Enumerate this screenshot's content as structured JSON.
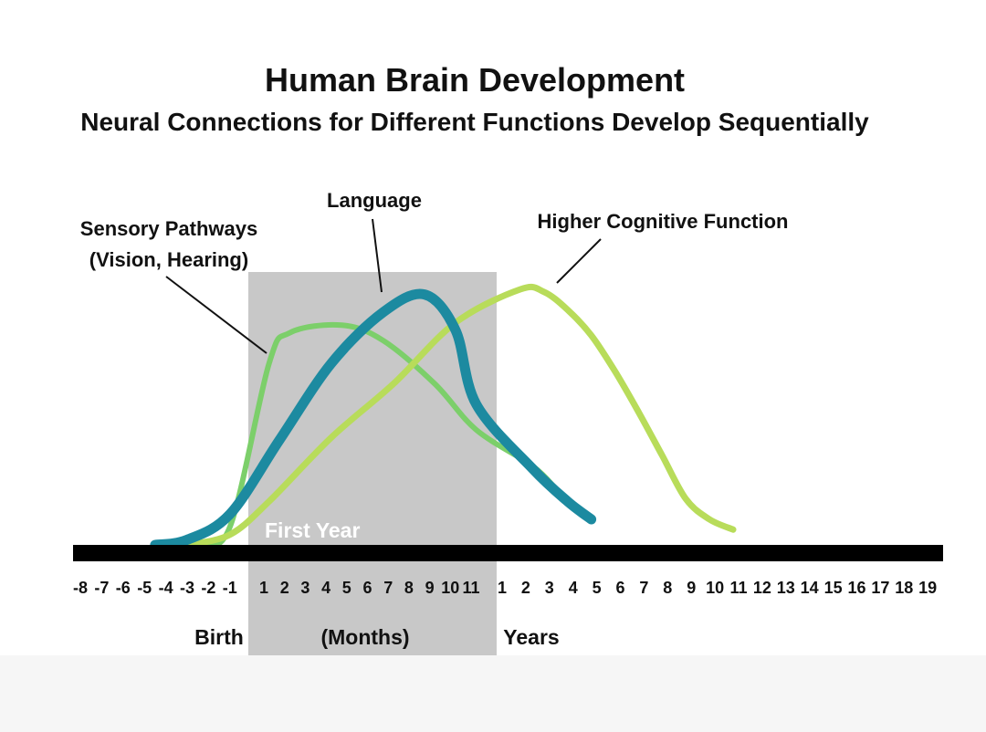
{
  "colors": {
    "sensory": "#7ccf6a",
    "language": "#1c8aa0",
    "cognitive": "#b8dc5a",
    "first_year_band": "#c8c8c8",
    "axis": "#000000",
    "text": "#111111"
  },
  "chart_data": {
    "type": "line",
    "title": "Human Brain Development",
    "subtitle": "Neural Connections for Different Functions Develop Sequentially",
    "band_label": "First Year",
    "prenatal_ticks": [
      "-8",
      "-7",
      "-6",
      "-5",
      "-4",
      "-3",
      "-2",
      "-1"
    ],
    "month_ticks": [
      "1",
      "2",
      "3",
      "4",
      "5",
      "6",
      "7",
      "8",
      "9",
      "10",
      "11"
    ],
    "year_ticks": [
      "1",
      "2",
      "3",
      "4",
      "5",
      "6",
      "7",
      "8",
      "9",
      "10",
      "11",
      "12",
      "13",
      "14",
      "15",
      "16",
      "17",
      "18",
      "19"
    ],
    "axis_labels": {
      "birth": "Birth",
      "months": "(Months)",
      "years": "Years"
    },
    "series": [
      {
        "name": "Sensory Pathways (Vision, Hearing)",
        "label_lines": [
          "Sensory Pathways",
          "(Vision, Hearing)"
        ],
        "color_key": "sensory",
        "points": [
          [
            -4,
            0
          ],
          [
            -2.5,
            1
          ],
          [
            -1,
            7
          ],
          [
            1,
            71
          ],
          [
            2,
            83
          ],
          [
            4.5,
            86
          ],
          [
            6.5,
            80
          ],
          [
            9,
            63
          ],
          [
            11,
            45
          ],
          [
            1.5,
            31
          ],
          [
            2.5,
            22
          ]
        ]
      },
      {
        "name": "Language",
        "label_lines": [
          "Language"
        ],
        "color_key": "language",
        "points": [
          [
            -4.5,
            0
          ],
          [
            -3,
            2
          ],
          [
            -1,
            12
          ],
          [
            1.5,
            41
          ],
          [
            4,
            71
          ],
          [
            6.5,
            91
          ],
          [
            8.5,
            98
          ],
          [
            10,
            84
          ],
          [
            11,
            55
          ],
          [
            1.5,
            30
          ],
          [
            3,
            17
          ],
          [
            4,
            10
          ]
        ]
      },
      {
        "name": "Higher Cognitive Function",
        "label_lines": [
          "Higher Cognitive Function"
        ],
        "color_key": "cognitive",
        "points": [
          [
            -3,
            0
          ],
          [
            -1,
            4
          ],
          [
            1,
            17
          ],
          [
            4,
            42
          ],
          [
            7,
            63
          ],
          [
            10,
            87
          ],
          [
            1,
            100
          ],
          [
            2,
            99
          ],
          [
            3,
            92
          ],
          [
            4,
            82
          ],
          [
            5,
            68
          ],
          [
            6,
            52
          ],
          [
            7,
            35
          ],
          [
            8,
            18
          ],
          [
            9,
            10
          ],
          [
            10,
            6
          ]
        ]
      }
    ],
    "legend": "inline annotations"
  }
}
